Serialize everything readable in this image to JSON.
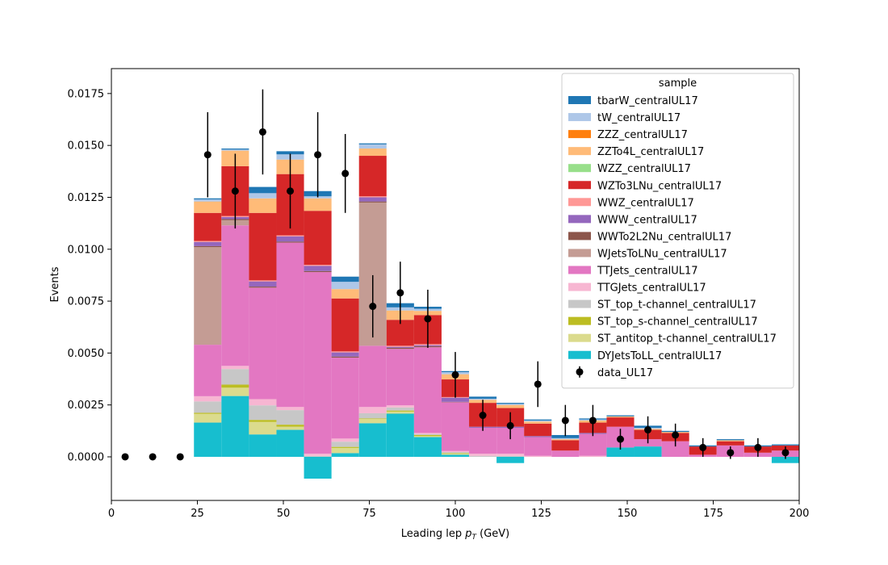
{
  "chart_data": {
    "type": "bar",
    "stacked": true,
    "bin_edges": [
      0,
      8,
      16,
      24,
      32,
      40,
      48,
      56,
      64,
      72,
      80,
      88,
      96,
      104,
      112,
      120,
      128,
      136,
      144,
      152,
      160,
      168,
      176,
      184,
      192,
      200
    ],
    "xlabel": "Leading lep ",
    "xlabel_sub": "T",
    "xlabel_p": "p",
    "xlabel_unit": " (GeV)",
    "ylabel": "Events",
    "xlim": [
      0,
      200
    ],
    "ylim": [
      -0.0021,
      0.0187
    ],
    "xticks": [
      0,
      25,
      50,
      75,
      100,
      125,
      150,
      175,
      200
    ],
    "xtick_labels": [
      "0",
      "25",
      "50",
      "75",
      "100",
      "125",
      "150",
      "175",
      "200"
    ],
    "yticks": [
      0,
      0.0025,
      0.005,
      0.0075,
      0.01,
      0.0125,
      0.015,
      0.0175
    ],
    "ytick_labels": [
      "0.0000",
      "0.0025",
      "0.0050",
      "0.0075",
      "0.0100",
      "0.0125",
      "0.0150",
      "0.0175"
    ],
    "legend": {
      "title": "sample",
      "position": "top-right"
    },
    "series": [
      {
        "name": "DYJetsToLL_centralUL17",
        "color": "#17becf",
        "values": [
          0,
          0,
          0,
          0.00165,
          0.00293,
          0.00108,
          0.0013,
          -0.00105,
          0.00018,
          0.00162,
          0.00208,
          0.00095,
          0.0001,
          0,
          -0.0003,
          0,
          0,
          0,
          0.00045,
          0.0005,
          0,
          0,
          0,
          0,
          -0.0003
        ]
      },
      {
        "name": "ST_antitop_t-channel_centralUL17",
        "color": "#dbdb8d",
        "values": [
          0,
          0,
          0,
          0.00042,
          0.0004,
          0.0006,
          0.00015,
          0,
          0.00025,
          0.0002,
          0.0001,
          5e-05,
          5e-05,
          0,
          0,
          0,
          0,
          0,
          0,
          0,
          0,
          0,
          0,
          0,
          0
        ]
      },
      {
        "name": "ST_top_s-channel_centralUL17",
        "color": "#bcbd22",
        "values": [
          0,
          0,
          0,
          5e-05,
          0.00015,
          0.0001,
          0.0001,
          0,
          5e-05,
          3e-05,
          5e-05,
          5e-05,
          3e-05,
          0,
          0,
          0,
          0,
          0,
          0,
          0,
          0,
          0,
          0,
          0,
          0
        ]
      },
      {
        "name": "ST_top_t-channel_centralUL17",
        "color": "#c7c7c7",
        "values": [
          0,
          0,
          0,
          0.00055,
          0.00075,
          0.0007,
          0.0007,
          5e-05,
          0.00025,
          0.00025,
          0.00015,
          5e-05,
          5e-05,
          5e-05,
          5e-05,
          0,
          0,
          0,
          0,
          0,
          0,
          0,
          0,
          0,
          0
        ]
      },
      {
        "name": "TTGJets_centralUL17",
        "color": "#f7b6d2",
        "values": [
          0,
          0,
          0,
          0.00025,
          0.00015,
          0.0003,
          0.00015,
          0.0001,
          0.00015,
          0.0003,
          0.0001,
          5e-05,
          5e-05,
          0.0001,
          0.0001,
          5e-05,
          0,
          5e-05,
          0,
          0,
          0,
          0,
          0,
          0,
          0
        ]
      },
      {
        "name": "TTJets_centralUL17",
        "color": "#e377c2",
        "values": [
          0,
          0,
          0,
          0.00248,
          0.00677,
          0.00537,
          0.00792,
          0.00875,
          0.0039,
          0.00295,
          0.00272,
          0.00413,
          0.00235,
          0.00125,
          0.00125,
          0.0009,
          0.0003,
          0.00105,
          0.001,
          0.00035,
          0.00075,
          0.0001,
          0.00055,
          0.0002,
          0.0003
        ]
      },
      {
        "name": "WJetsToLNu_centralUL17",
        "color": "#c49c94",
        "values": [
          0,
          0,
          0,
          0.0047,
          0.00025,
          0,
          0,
          0,
          0,
          0.0069,
          0,
          0,
          0,
          0,
          0,
          0,
          0,
          0,
          0,
          0,
          0,
          0,
          0,
          0,
          0
        ]
      },
      {
        "name": "WWTo2L2Nu_centralUL17",
        "color": "#8c564b",
        "values": [
          0,
          0,
          0,
          5e-05,
          5e-05,
          5e-05,
          5e-05,
          5e-05,
          5e-05,
          5e-05,
          5e-05,
          5e-05,
          2e-05,
          0,
          0,
          0,
          0,
          0,
          0,
          0,
          0,
          0,
          0,
          0,
          0
        ]
      },
      {
        "name": "WWW_centralUL17",
        "color": "#9467bd",
        "values": [
          0,
          0,
          0,
          0.0002,
          0.0001,
          0.00025,
          0.00025,
          0.00025,
          0.0002,
          0.0002,
          5e-05,
          5e-05,
          0.0002,
          5e-05,
          5e-05,
          5e-05,
          0,
          5e-05,
          0,
          0,
          0,
          0,
          0,
          0,
          0
        ]
      },
      {
        "name": "WWZ_centralUL17",
        "color": "#ff9896",
        "values": [
          0,
          0,
          0,
          5e-05,
          5e-05,
          5e-05,
          5e-05,
          5e-05,
          5e-05,
          5e-05,
          5e-05,
          5e-05,
          3e-05,
          0,
          0,
          0,
          0,
          0,
          0,
          0,
          0,
          0,
          0,
          0,
          0
        ]
      },
      {
        "name": "WZTo3LNu_centralUL17",
        "color": "#d62728",
        "values": [
          0,
          0,
          0,
          0.00135,
          0.0024,
          0.00325,
          0.00295,
          0.0026,
          0.00255,
          0.00195,
          0.00125,
          0.0014,
          0.00085,
          0.00115,
          0.0009,
          0.0006,
          0.0005,
          0.0005,
          0.00045,
          0.00045,
          0.0004,
          0.0004,
          0.0002,
          0.0003,
          0.00025
        ]
      },
      {
        "name": "WZZ_centralUL17",
        "color": "#98df8a",
        "values": [
          0,
          0,
          0,
          0,
          0,
          0,
          0,
          0,
          0,
          0,
          0,
          0,
          0,
          0,
          0,
          0,
          0,
          0,
          0,
          0,
          0,
          0,
          0,
          0,
          0
        ]
      },
      {
        "name": "ZZTo4L_centralUL17",
        "color": "#ffbb78",
        "values": [
          0,
          0,
          0,
          0.00055,
          0.00075,
          0.0007,
          0.0007,
          0.0006,
          0.00045,
          0.00035,
          0.00045,
          0.0002,
          0.00025,
          0.00015,
          0.00015,
          0.0001,
          5e-05,
          0.0001,
          5e-05,
          5e-05,
          5e-05,
          0,
          5e-05,
          0,
          0
        ]
      },
      {
        "name": "ZZZ_centralUL17",
        "color": "#ff7f0e",
        "values": [
          0,
          0,
          0,
          0,
          0,
          0,
          0,
          0,
          0,
          0,
          0,
          0,
          0,
          0,
          0,
          0,
          0,
          0,
          0,
          0,
          0,
          0,
          0,
          0,
          0
        ]
      },
      {
        "name": "tW_centralUL17",
        "color": "#aec7e8",
        "values": [
          0,
          0,
          0,
          0.0001,
          5e-05,
          0.00025,
          0.00025,
          0.0001,
          0.00035,
          0.0002,
          0.00015,
          0.0001,
          0.0001,
          5e-05,
          5e-05,
          5e-05,
          5e-05,
          5e-05,
          0,
          5e-05,
          0,
          0,
          0,
          0,
          0
        ]
      },
      {
        "name": "tbarW_centralUL17",
        "color": "#1f77b4",
        "values": [
          0,
          0,
          0,
          5e-05,
          5e-05,
          0.0003,
          0.00015,
          0.00025,
          0.00025,
          5e-05,
          0.0002,
          0.0001,
          5e-05,
          0.0001,
          5e-05,
          5e-05,
          0.00015,
          5e-05,
          5e-05,
          0.0001,
          5e-05,
          5e-05,
          5e-05,
          5e-05,
          5e-05
        ]
      }
    ],
    "data": {
      "name": "data_UL17",
      "color": "#000000",
      "x": [
        4,
        12,
        20,
        28,
        36,
        44,
        52,
        60,
        68,
        76,
        84,
        92,
        100,
        108,
        116,
        124,
        132,
        140,
        148,
        156,
        164,
        172,
        180,
        188,
        196
      ],
      "y": [
        0,
        0,
        0,
        0.01455,
        0.0128,
        0.01565,
        0.0128,
        0.01455,
        0.01365,
        0.00725,
        0.0079,
        0.00665,
        0.00395,
        0.002,
        0.0015,
        0.0035,
        0.00175,
        0.00175,
        0.00085,
        0.0013,
        0.00105,
        0.00045,
        0.0002,
        0.00045,
        0.0002
      ],
      "yerr": [
        0,
        0,
        0,
        0.00205,
        0.0018,
        0.00205,
        0.0018,
        0.00205,
        0.0019,
        0.0015,
        0.0015,
        0.0014,
        0.0011,
        0.00075,
        0.00065,
        0.0011,
        0.00075,
        0.00075,
        0.0005,
        0.00065,
        0.00055,
        0.00045,
        0.0003,
        0.00045,
        0.0003
      ]
    }
  }
}
